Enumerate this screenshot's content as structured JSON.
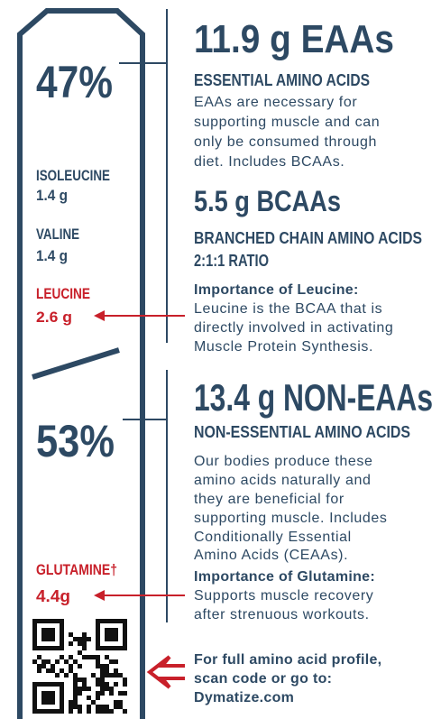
{
  "left": {
    "eaa_percent": "47%",
    "bcaas": [
      {
        "name": "ISOLEUCINE",
        "amount": "1.4 g"
      },
      {
        "name": "VALINE",
        "amount": "1.4 g"
      },
      {
        "name": "LEUCINE",
        "amount": "2.6 g"
      }
    ],
    "non_eaa_percent": "53%",
    "glutamine": {
      "name": "GLUTAMINE†",
      "amount": "4.4g"
    }
  },
  "eaas": {
    "heading": "11.9 g EAAs",
    "subtitle": "ESSENTIAL AMINO ACIDS",
    "text": [
      "EAAs are necessary for",
      "supporting muscle and can",
      "only be consumed through",
      "diet. Includes BCAAs."
    ]
  },
  "bcaas": {
    "heading": "5.5 g BCAAs",
    "subtitle": [
      "BRANCHED CHAIN AMINO ACIDS",
      "2:1:1 RATIO"
    ],
    "note_title": "Importance of Leucine:",
    "note": [
      "Leucine is the BCAA that is",
      "directly involved in activating",
      "Muscle Protein Synthesis."
    ]
  },
  "non_eaas": {
    "heading": "13.4 g NON-EAAs",
    "subtitle": "NON-ESSENTIAL AMINO ACIDS",
    "text": [
      "Our bodies produce these",
      "amino acids naturally and",
      "they are beneficial for",
      "supporting muscle. Includes",
      "Conditionally Essential",
      "Amino Acids (CEAAs)."
    ],
    "note_title": "Importance of Glutamine:",
    "note": [
      "Supports muscle recovery",
      "after strenuous workouts."
    ]
  },
  "footer": {
    "text": [
      "For full amino acid profile,",
      "scan code or go to:",
      "Dymatize.com"
    ]
  }
}
